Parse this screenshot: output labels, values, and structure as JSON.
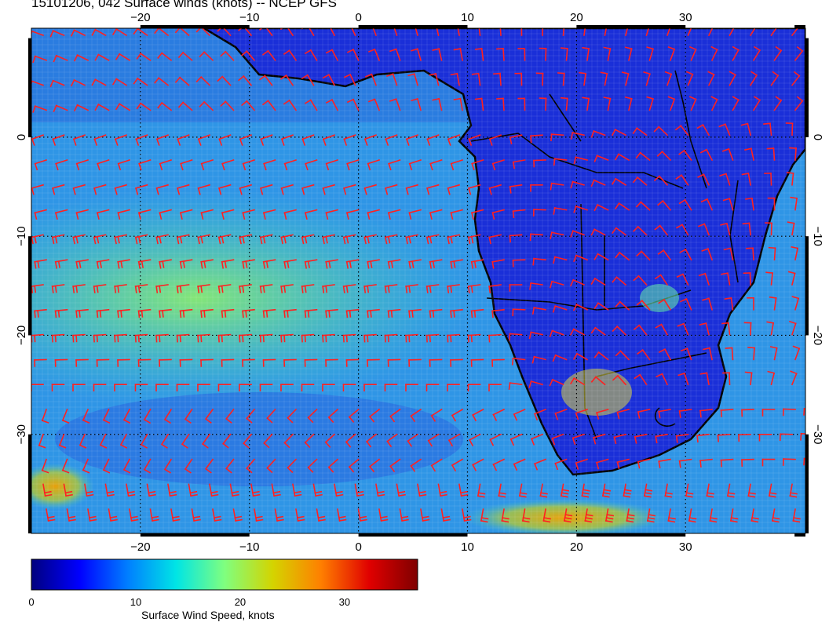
{
  "title": "15101206, 042 Surface winds (knots) -- NCEP GFS",
  "map": {
    "lon_range": [
      -30,
      41
    ],
    "lat_range": [
      -40,
      11
    ],
    "lon_ticks": [
      "−20",
      "−10",
      "0",
      "10",
      "20",
      "30"
    ],
    "lon_tick_values": [
      -20,
      -10,
      0,
      10,
      20,
      30
    ],
    "lat_ticks": [
      "0",
      "−10",
      "−20",
      "−30"
    ],
    "lat_tick_values": [
      0,
      -10,
      -20,
      -30
    ],
    "barb_color": "#ff2020",
    "land_outline_color": "#000000",
    "gridlines": "dotted"
  },
  "colorbar": {
    "label": "Surface Wind Speed, knots",
    "range": [
      0,
      37
    ],
    "ticks": [
      "0",
      "10",
      "20",
      "30"
    ],
    "tick_values": [
      0,
      10,
      20,
      30
    ],
    "colors": [
      "#00007f",
      "#0000ff",
      "#007fff",
      "#00e5e5",
      "#7fff7f",
      "#d4d400",
      "#ff7f00",
      "#e00000",
      "#7f0000"
    ]
  }
}
